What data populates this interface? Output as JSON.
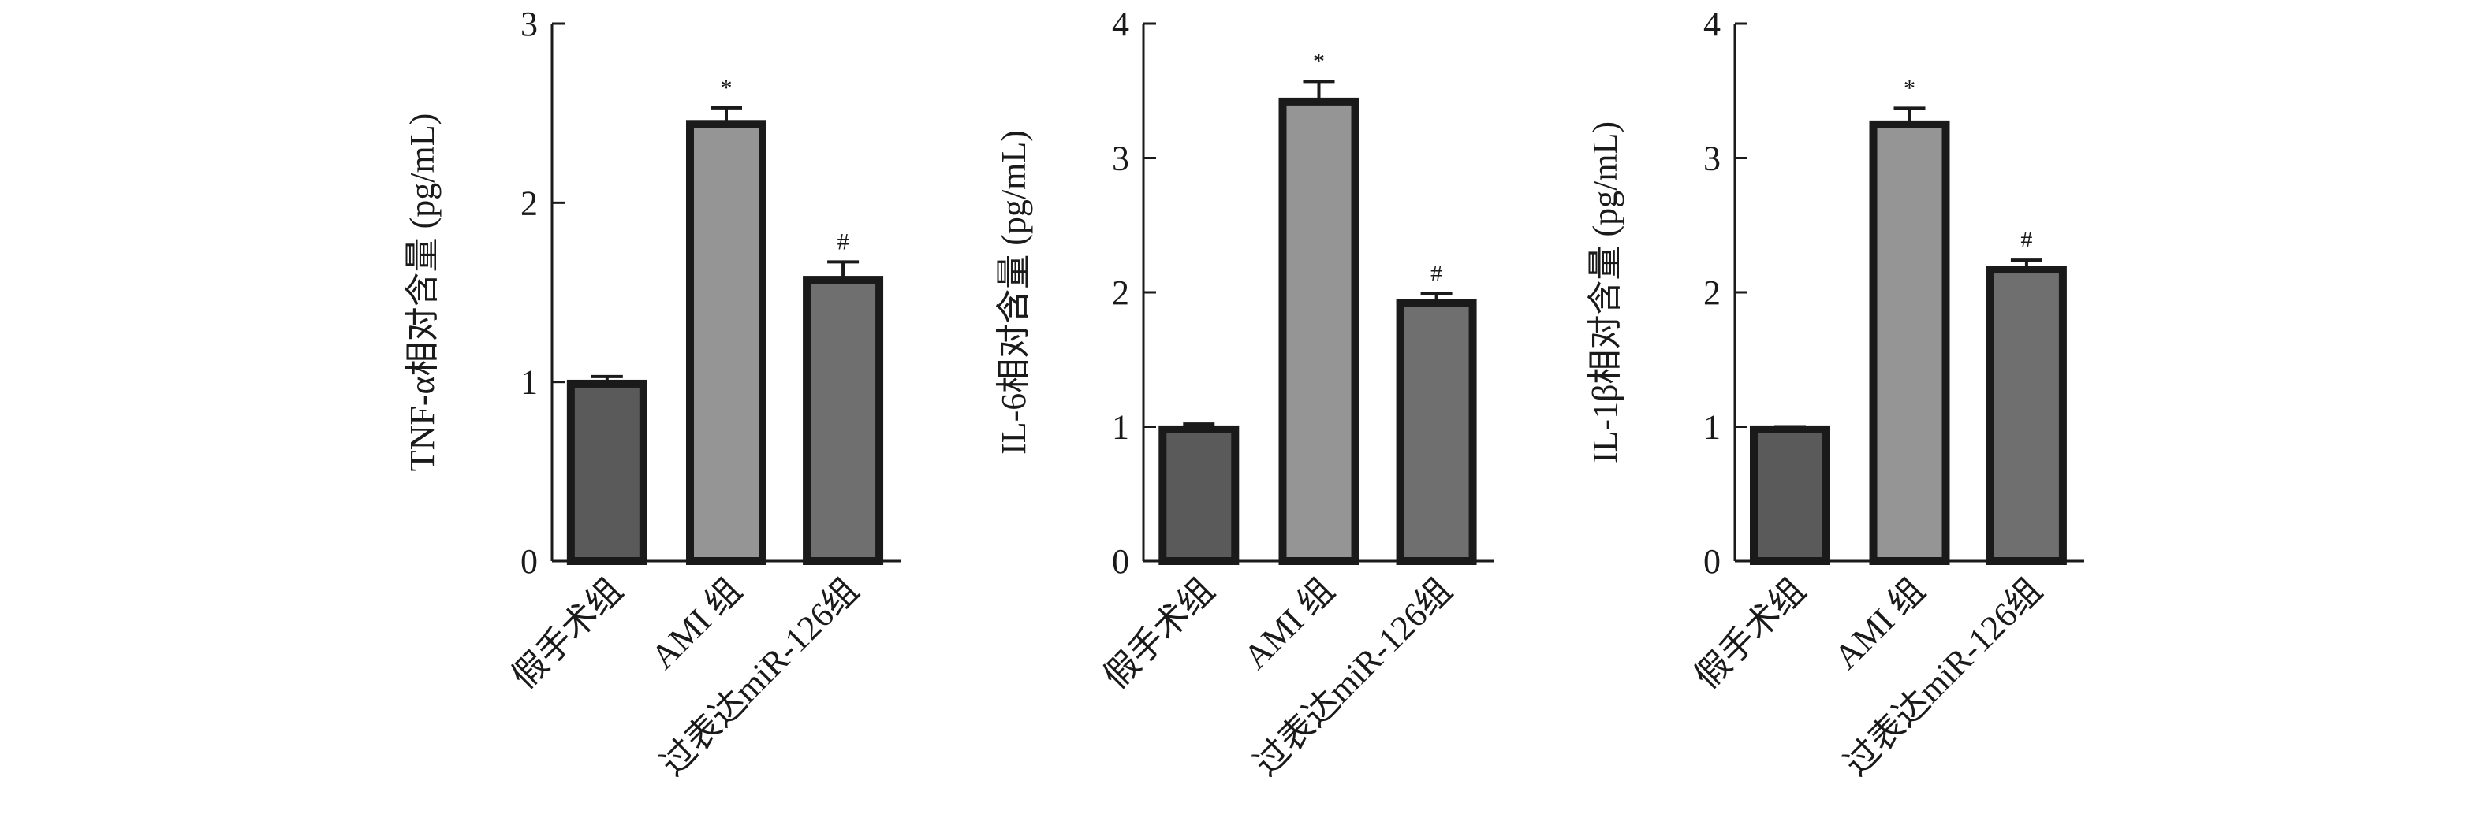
{
  "chart_data": [
    {
      "type": "bar",
      "ylabel": "TNF-α相对含量 (pg/mL)",
      "ylim": [
        0,
        3
      ],
      "yticks": [
        "0",
        "1",
        "2",
        "3"
      ],
      "categories": [
        "假手术组",
        "AMI 组",
        "过表达miR-126组"
      ],
      "values": [
        0.99,
        2.44,
        1.57
      ],
      "errors": [
        0.04,
        0.09,
        0.1
      ],
      "annotations": [
        "",
        "*",
        "#"
      ],
      "bar_colors": [
        "#5a5a5a",
        "#959595",
        "#6f6f6f"
      ]
    },
    {
      "type": "bar",
      "ylabel": "IL-6相对含量 (pg/mL)",
      "ylim": [
        0,
        4
      ],
      "yticks": [
        "0",
        "1",
        "2",
        "3",
        "4"
      ],
      "categories": [
        "假手术组",
        "AMI 组",
        "过表达miR-126组"
      ],
      "values": [
        0.98,
        3.42,
        1.92
      ],
      "errors": [
        0.04,
        0.15,
        0.07
      ],
      "annotations": [
        "",
        "*",
        "#"
      ],
      "bar_colors": [
        "#5a5a5a",
        "#959595",
        "#6f6f6f"
      ]
    },
    {
      "type": "bar",
      "ylabel": "IL-1β相对含量 (pg/mL)",
      "ylim": [
        0,
        4
      ],
      "yticks": [
        "0",
        "1",
        "2",
        "3",
        "4"
      ],
      "categories": [
        "假手术组",
        "AMI 组",
        "过表达miR-126组"
      ],
      "values": [
        0.98,
        3.25,
        2.17
      ],
      "errors": [
        0.02,
        0.12,
        0.07
      ],
      "annotations": [
        "",
        "*",
        "#"
      ],
      "bar_colors": [
        "#5a5a5a",
        "#959595",
        "#6f6f6f"
      ]
    }
  ],
  "colors": {
    "axis": "#1a1a1a",
    "bar_outline": "#1a1a1a"
  }
}
